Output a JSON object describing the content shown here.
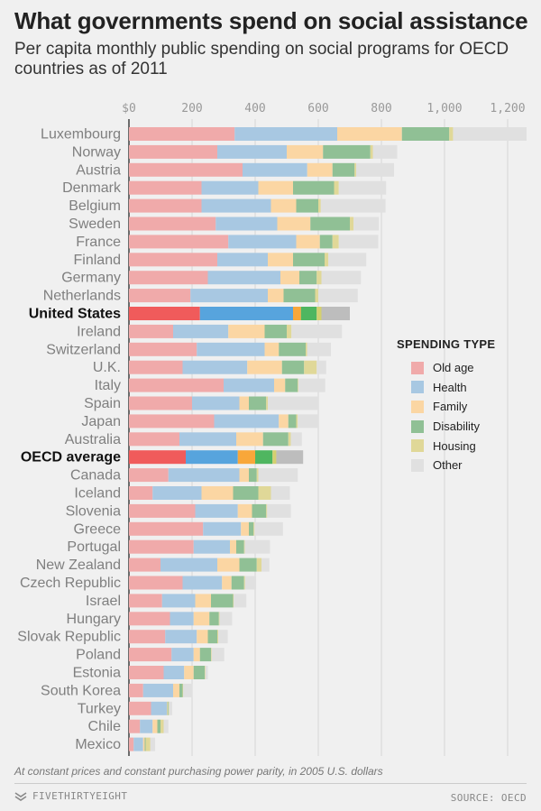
{
  "header": {
    "title": "What governments spend on social assistance",
    "subtitle": "Per capita monthly public spending on social programs for OECD countries as of 2011"
  },
  "legend": {
    "title": "SPENDING TYPE",
    "items": [
      {
        "label": "Old age",
        "color": "#f0aaaa"
      },
      {
        "label": "Health",
        "color": "#a8c8e2"
      },
      {
        "label": "Family",
        "color": "#fbd6a3"
      },
      {
        "label": "Disability",
        "color": "#90c095"
      },
      {
        "label": "Housing",
        "color": "#e0d898"
      },
      {
        "label": "Other",
        "color": "#e0e0e0"
      }
    ]
  },
  "chart_data": {
    "type": "bar",
    "orientation": "horizontal",
    "stacked": true,
    "title": "What governments spend on social assistance",
    "xlim": [
      0,
      1260
    ],
    "xticks": [
      0,
      200,
      400,
      600,
      800,
      1000,
      1200
    ],
    "xtick_labels": [
      "$0",
      "200",
      "400",
      "600",
      "800",
      "1,000",
      "1,200"
    ],
    "series_names": [
      "Old age",
      "Health",
      "Family",
      "Disability",
      "Housing",
      "Other"
    ],
    "highlight_colors": [
      "#f05b5b",
      "#57a4dd",
      "#f8a73a",
      "#4fb660",
      "#d4d070",
      "#bdbdbd"
    ],
    "categories": [
      "Luxembourg",
      "Norway",
      "Austria",
      "Denmark",
      "Belgium",
      "Sweden",
      "France",
      "Finland",
      "Germany",
      "Netherlands",
      "United States",
      "Ireland",
      "Switzerland",
      "U.K.",
      "Italy",
      "Spain",
      "Japan",
      "Australia",
      "OECD average",
      "Canada",
      "Iceland",
      "Slovenia",
      "Greece",
      "Portugal",
      "New Zealand",
      "Czech Republic",
      "Israel",
      "Hungary",
      "Slovak Republic",
      "Poland",
      "Estonia",
      "South Korea",
      "Turkey",
      "Chile",
      "Mexico"
    ],
    "highlighted": [
      "United States",
      "OECD average"
    ],
    "values": [
      [
        335,
        325,
        205,
        150,
        12,
        233
      ],
      [
        280,
        220,
        115,
        150,
        8,
        77
      ],
      [
        360,
        205,
        80,
        70,
        5,
        120
      ],
      [
        230,
        180,
        110,
        130,
        15,
        150
      ],
      [
        230,
        220,
        80,
        70,
        8,
        205
      ],
      [
        275,
        195,
        105,
        125,
        12,
        80
      ],
      [
        315,
        215,
        75,
        40,
        20,
        125
      ],
      [
        280,
        160,
        80,
        100,
        12,
        120
      ],
      [
        250,
        230,
        60,
        55,
        15,
        125
      ],
      [
        195,
        245,
        50,
        100,
        10,
        125
      ],
      [
        225,
        295,
        25,
        50,
        15,
        90
      ],
      [
        140,
        175,
        115,
        70,
        15,
        160
      ],
      [
        215,
        215,
        45,
        85,
        5,
        75
      ],
      [
        170,
        205,
        110,
        70,
        40,
        30
      ],
      [
        300,
        160,
        35,
        40,
        2,
        85
      ],
      [
        200,
        150,
        30,
        55,
        5,
        160
      ],
      [
        270,
        205,
        30,
        25,
        5,
        65
      ],
      [
        160,
        180,
        85,
        80,
        8,
        35
      ],
      [
        180,
        165,
        55,
        55,
        12,
        85
      ],
      [
        125,
        225,
        30,
        25,
        5,
        125
      ],
      [
        75,
        155,
        100,
        80,
        40,
        60
      ],
      [
        210,
        135,
        45,
        45,
        3,
        75
      ],
      [
        235,
        120,
        25,
        15,
        3,
        90
      ],
      [
        205,
        115,
        20,
        25,
        2,
        80
      ],
      [
        100,
        180,
        70,
        55,
        15,
        25
      ],
      [
        170,
        125,
        30,
        40,
        3,
        35
      ],
      [
        105,
        105,
        50,
        70,
        2,
        40
      ],
      [
        130,
        75,
        50,
        30,
        2,
        40
      ],
      [
        115,
        100,
        35,
        30,
        3,
        30
      ],
      [
        135,
        70,
        20,
        35,
        2,
        40
      ],
      [
        110,
        65,
        30,
        35,
        2,
        8
      ],
      [
        45,
        95,
        20,
        10,
        2,
        30
      ],
      [
        70,
        50,
        2,
        3,
        2,
        10
      ],
      [
        35,
        40,
        15,
        10,
        10,
        15
      ],
      [
        15,
        30,
        5,
        3,
        15,
        15
      ]
    ]
  },
  "footer": {
    "note": "At constant prices and constant purchasing power parity, in 2005 U.S. dollars",
    "brand": "FIVETHIRTYEIGHT",
    "source": "SOURCE: OECD"
  }
}
